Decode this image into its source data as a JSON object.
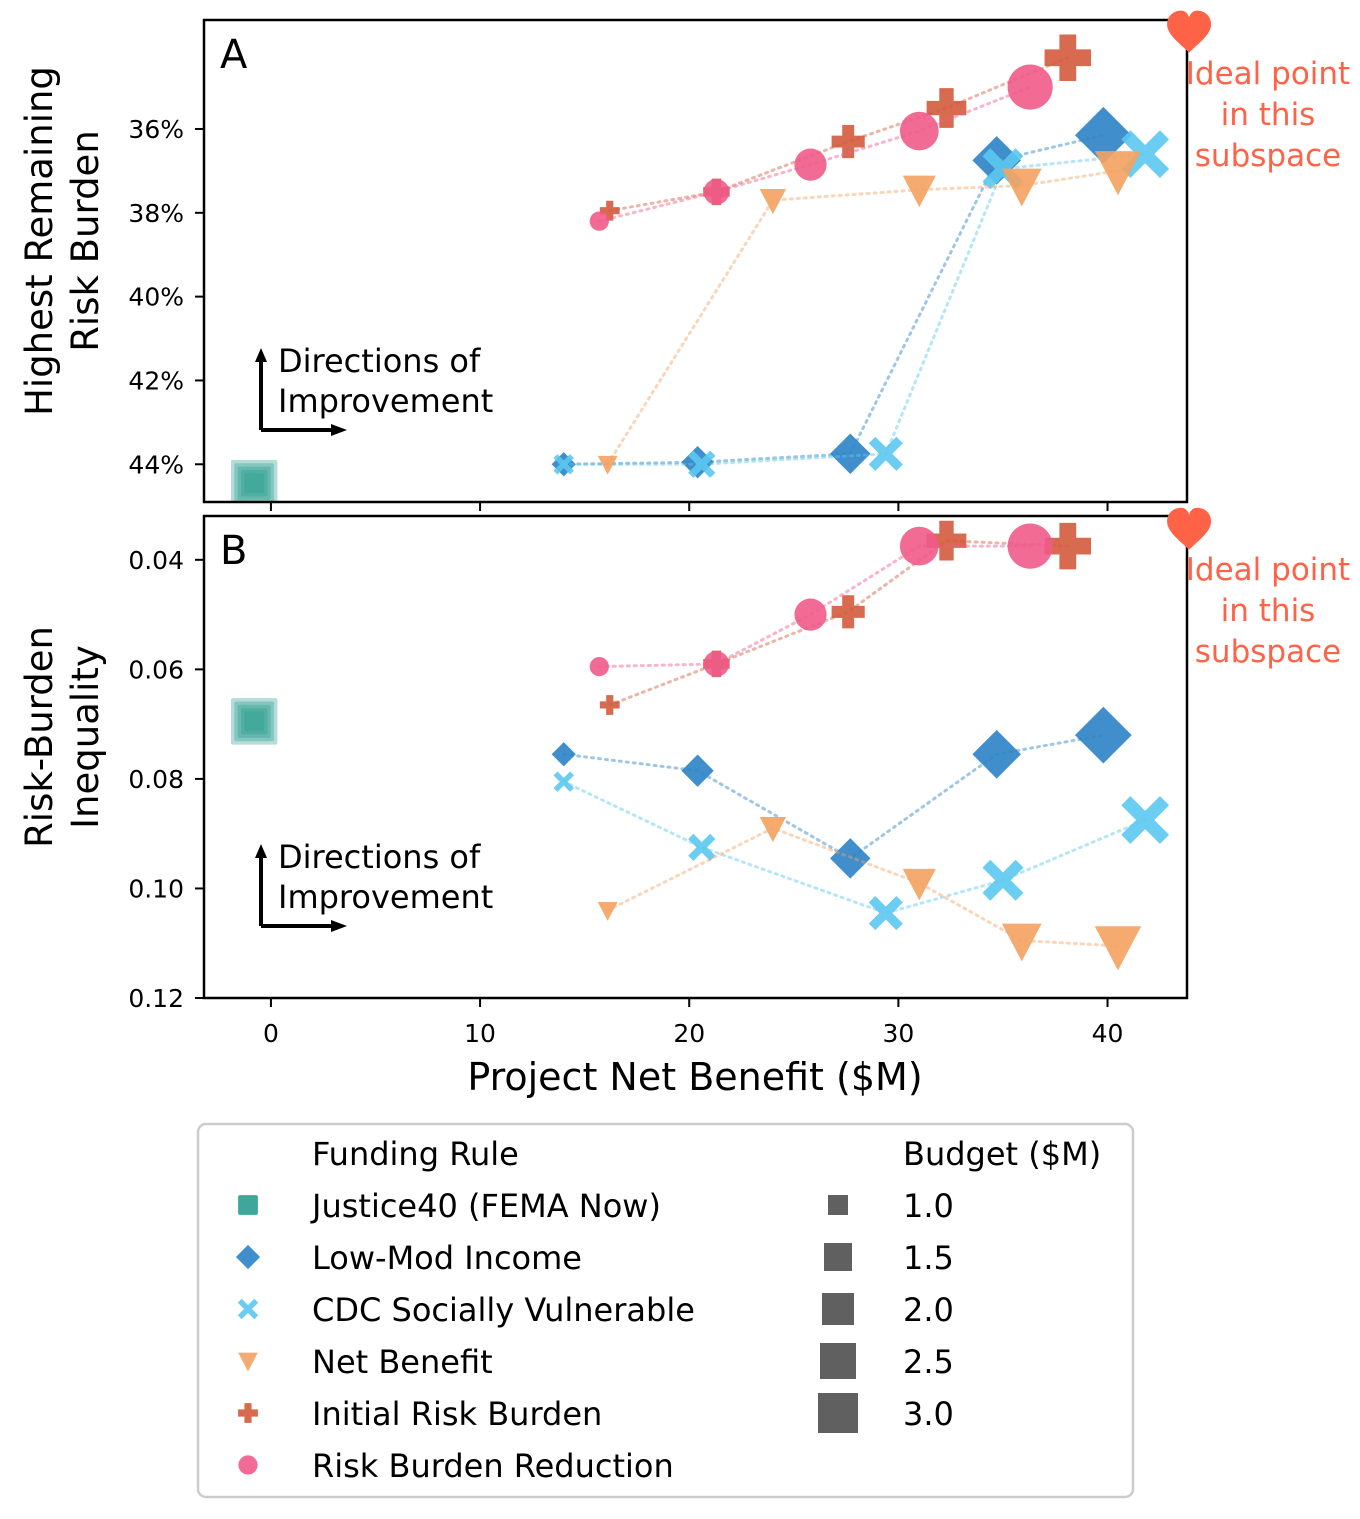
{
  "figure": {
    "xlabel": "Project Net Benefit ($M)",
    "ideal_label": [
      "Ideal point",
      "in this",
      "subspace"
    ],
    "improvement_label": [
      "Directions of",
      "Improvement"
    ]
  },
  "colors": {
    "justice40": "#2a9d8f",
    "low_mod": "#2b83c6",
    "cdc": "#5bc8f0",
    "net_benefit": "#f4a261",
    "initial_risk": "#d35a3c",
    "risk_reduction": "#ef5b8a",
    "ideal": "#ff6347",
    "legend_swatch": "#606060"
  },
  "legend": {
    "rule_title": "Funding Rule",
    "budget_title": "Budget ($M)",
    "rules": [
      {
        "label": "Justice40 (FEMA Now)",
        "marker": "square",
        "color_key": "justice40"
      },
      {
        "label": "Low-Mod Income",
        "marker": "diamond",
        "color_key": "low_mod"
      },
      {
        "label": "CDC Socially Vulnerable",
        "marker": "x",
        "color_key": "cdc"
      },
      {
        "label": "Net Benefit",
        "marker": "triangle-down",
        "color_key": "net_benefit"
      },
      {
        "label": "Initial Risk Burden",
        "marker": "plus",
        "color_key": "initial_risk"
      },
      {
        "label": "Risk Burden Reduction",
        "marker": "circle",
        "color_key": "risk_reduction"
      }
    ],
    "budgets": [
      "1.0",
      "1.5",
      "2.0",
      "2.5",
      "3.0"
    ]
  },
  "chart_data": [
    {
      "type": "scatter",
      "panel_label": "A",
      "ylabel": [
        "Highest Remaining",
        "Risk Burden"
      ],
      "xlim": [
        -3.2,
        43.8
      ],
      "ylim": [
        44.9,
        33.4
      ],
      "y_ticks": [
        {
          "v": 36,
          "label": "36%"
        },
        {
          "v": 38,
          "label": "38%"
        },
        {
          "v": 40,
          "label": "40%"
        },
        {
          "v": 42,
          "label": "42%"
        },
        {
          "v": 44,
          "label": "44%"
        }
      ],
      "x_ticks": [
        0,
        10,
        20,
        30,
        40
      ],
      "show_x_ticklabels": false,
      "ideal_point": {
        "x": 43.9,
        "y": 33.7
      },
      "series": [
        {
          "name": "Justice40 (FEMA Now)",
          "color_key": "justice40",
          "marker": "square",
          "connect": false,
          "budget": [
            1.0,
            1.5,
            2.0,
            2.5,
            3.0
          ],
          "x": [
            -0.8,
            -0.8,
            -0.8,
            -0.8,
            -0.8
          ],
          "y": [
            44.45,
            44.45,
            44.45,
            44.45,
            44.45
          ]
        },
        {
          "name": "Low-Mod Income",
          "color_key": "low_mod",
          "marker": "diamond",
          "connect": true,
          "budget": [
            1.0,
            1.5,
            2.0,
            2.5,
            3.0
          ],
          "x": [
            14.0,
            20.4,
            27.7,
            34.7,
            39.8
          ],
          "y": [
            44.0,
            43.95,
            43.75,
            36.75,
            36.15
          ]
        },
        {
          "name": "CDC Socially Vulnerable",
          "color_key": "cdc",
          "marker": "x",
          "connect": true,
          "budget": [
            1.0,
            1.5,
            2.0,
            2.5,
            3.0
          ],
          "x": [
            14.0,
            20.6,
            29.4,
            35.0,
            41.8
          ],
          "y": [
            44.0,
            44.0,
            43.75,
            36.95,
            36.6
          ]
        },
        {
          "name": "Net Benefit",
          "color_key": "net_benefit",
          "marker": "triangle-down",
          "connect": true,
          "budget": [
            1.0,
            1.5,
            2.0,
            2.5,
            3.0
          ],
          "x": [
            16.1,
            24.0,
            31.0,
            35.9,
            40.5
          ],
          "y": [
            44.0,
            37.7,
            37.45,
            37.35,
            37.0
          ]
        },
        {
          "name": "Initial Risk Burden",
          "color_key": "initial_risk",
          "marker": "plus",
          "connect": true,
          "budget": [
            1.0,
            1.5,
            2.0,
            2.5,
            3.0
          ],
          "x": [
            16.2,
            21.3,
            27.6,
            32.3,
            38.1
          ],
          "y": [
            37.95,
            37.5,
            36.3,
            35.5,
            34.3
          ]
        },
        {
          "name": "Risk Burden Reduction",
          "color_key": "risk_reduction",
          "marker": "circle",
          "connect": true,
          "budget": [
            1.0,
            1.5,
            2.0,
            2.5,
            3.0
          ],
          "x": [
            15.7,
            21.3,
            25.8,
            31.0,
            36.3
          ],
          "y": [
            38.2,
            37.5,
            36.85,
            36.05,
            35.0
          ]
        }
      ]
    },
    {
      "type": "scatter",
      "panel_label": "B",
      "ylabel": [
        "Risk-Burden",
        "Inequality"
      ],
      "xlim": [
        -3.2,
        43.8
      ],
      "ylim": [
        0.12,
        0.032
      ],
      "y_ticks": [
        {
          "v": 0.04,
          "label": "0.04"
        },
        {
          "v": 0.06,
          "label": "0.06"
        },
        {
          "v": 0.08,
          "label": "0.08"
        },
        {
          "v": 0.1,
          "label": "0.10"
        },
        {
          "v": 0.12,
          "label": "0.12"
        }
      ],
      "x_ticks": [
        0,
        10,
        20,
        30,
        40
      ],
      "show_x_ticklabels": true,
      "ideal_point": {
        "x": 43.9,
        "y": 0.0345
      },
      "series": [
        {
          "name": "Justice40 (FEMA Now)",
          "color_key": "justice40",
          "marker": "square",
          "connect": false,
          "budget": [
            1.0,
            1.5,
            2.0,
            2.5,
            3.0
          ],
          "x": [
            -0.8,
            -0.8,
            -0.8,
            -0.8,
            -0.8
          ],
          "y": [
            0.0695,
            0.0695,
            0.0695,
            0.0695,
            0.0695
          ]
        },
        {
          "name": "Low-Mod Income",
          "color_key": "low_mod",
          "marker": "diamond",
          "connect": true,
          "budget": [
            1.0,
            1.5,
            2.0,
            2.5,
            3.0
          ],
          "x": [
            14.0,
            20.4,
            27.7,
            34.7,
            39.8
          ],
          "y": [
            0.0755,
            0.0785,
            0.0945,
            0.0755,
            0.072
          ]
        },
        {
          "name": "CDC Socially Vulnerable",
          "color_key": "cdc",
          "marker": "x",
          "connect": true,
          "budget": [
            1.0,
            1.5,
            2.0,
            2.5,
            3.0
          ],
          "x": [
            14.0,
            20.6,
            29.4,
            35.0,
            41.8
          ],
          "y": [
            0.0805,
            0.0925,
            0.1045,
            0.0985,
            0.0875
          ]
        },
        {
          "name": "Net Benefit",
          "color_key": "net_benefit",
          "marker": "triangle-down",
          "connect": true,
          "budget": [
            1.0,
            1.5,
            2.0,
            2.5,
            3.0
          ],
          "x": [
            16.1,
            24.0,
            31.0,
            35.9,
            40.5
          ],
          "y": [
            0.104,
            0.089,
            0.099,
            0.1095,
            0.1105
          ]
        },
        {
          "name": "Initial Risk Burden",
          "color_key": "initial_risk",
          "marker": "plus",
          "connect": true,
          "budget": [
            1.0,
            1.5,
            2.0,
            2.5,
            3.0
          ],
          "x": [
            16.2,
            21.3,
            27.6,
            32.3,
            38.1
          ],
          "y": [
            0.0665,
            0.059,
            0.0495,
            0.0365,
            0.0375
          ]
        },
        {
          "name": "Risk Burden Reduction",
          "color_key": "risk_reduction",
          "marker": "circle",
          "connect": true,
          "budget": [
            1.0,
            1.5,
            2.0,
            2.5,
            3.0
          ],
          "x": [
            15.7,
            21.3,
            25.8,
            31.0,
            36.3
          ],
          "y": [
            0.0595,
            0.059,
            0.05,
            0.0375,
            0.0375
          ]
        }
      ]
    }
  ]
}
